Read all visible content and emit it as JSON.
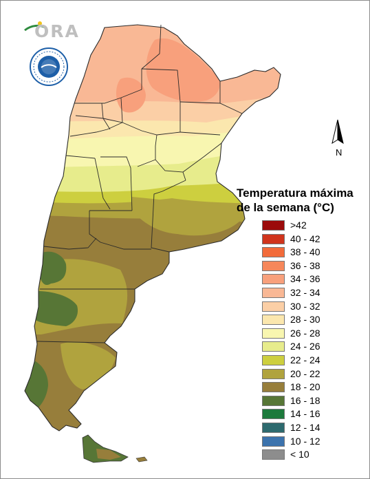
{
  "brand": {
    "logo_text": "ORA",
    "logo_color": "#f0c419",
    "accent_color": "#2e8b3e"
  },
  "seal": {
    "ring_text": "SERVICIO METEOROLÓGICO NACIONAL · ARGENTINA",
    "primary_color": "#1d5fa8"
  },
  "north_arrow": {
    "label": "N"
  },
  "legend": {
    "title_line1": "Temperatura máxima",
    "title_line2": "de la semana (°C)",
    "items": [
      {
        "label": ">42",
        "color": "#9b0a0a"
      },
      {
        "label": "40 - 42",
        "color": "#d0341c"
      },
      {
        "label": "38 - 40",
        "color": "#f26b3a"
      },
      {
        "label": "36 - 38",
        "color": "#f6875a"
      },
      {
        "label": "34 - 36",
        "color": "#f8a07c"
      },
      {
        "label": "32 - 34",
        "color": "#f9b895"
      },
      {
        "label": "30 - 32",
        "color": "#fbcfa6"
      },
      {
        "label": "28 - 30",
        "color": "#fbe7ae"
      },
      {
        "label": "26 - 28",
        "color": "#f8f6b0"
      },
      {
        "label": "24 - 26",
        "color": "#e7ec8c"
      },
      {
        "label": "22 - 24",
        "color": "#cdcf3f"
      },
      {
        "label": "20 - 22",
        "color": "#b0a33e"
      },
      {
        "label": "18 - 20",
        "color": "#977e3b"
      },
      {
        "label": "16 - 18",
        "color": "#577636"
      },
      {
        "label": "14 - 16",
        "color": "#1d7a3c"
      },
      {
        "label": "12 - 14",
        "color": "#2d6a6e"
      },
      {
        "label": "10 - 12",
        "color": "#3c73ad"
      },
      {
        "label": "< 10",
        "color": "#8d8d8d"
      }
    ]
  }
}
